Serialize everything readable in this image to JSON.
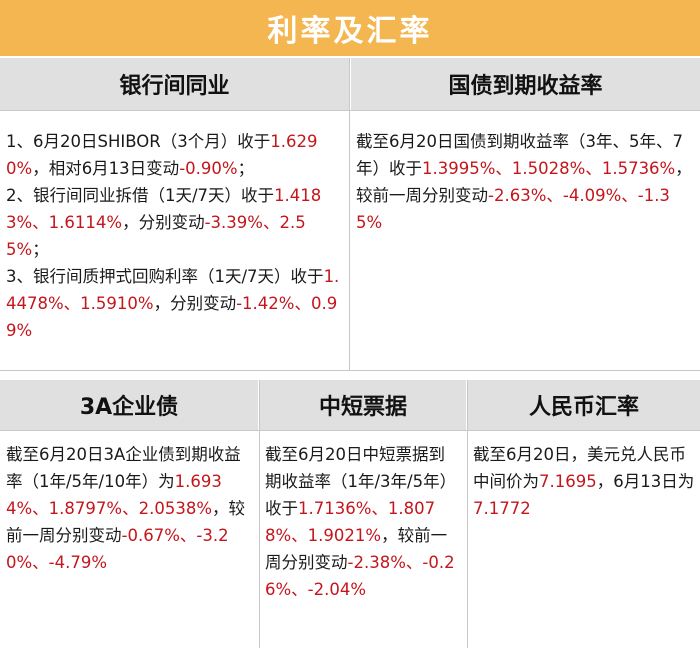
{
  "title": "利率及汇率",
  "sections": {
    "interbank": {
      "header": "银行间同业",
      "p1a": "1、6月20日SHIBOR（3个月）收于",
      "p1b": "1.6290%",
      "p1c": "，相对6月13日变动",
      "p1d": "-0.90%",
      "p1e": "；",
      "p2a": "2、银行间同业拆借（1天/7天）收于",
      "p2b": "1.4183%、1.6114%",
      "p2c": "，分别变动",
      "p2d": "-3.39%、2.55%",
      "p2e": "；",
      "p3a": "3、银行间质押式回购利率（1天/7天）收于",
      "p3b": "1.4478%、1.5910%",
      "p3c": "，分别变动",
      "p3d": "-1.42%、0.99%"
    },
    "treasury": {
      "header": "国债到期收益率",
      "a": "截至6月20日国债到期收益率（3年、5年、7年）收于",
      "b": "1.3995%、1.5028%、1.5736%",
      "c": "，较前一周分别变动",
      "d": "-2.63%、-4.09%、-1.35%"
    },
    "corp_bond": {
      "header": "3A企业债",
      "a": "截至6月20日3A企业债到期收益率（1年/5年/10年）为",
      "b": "1.6934%、1.8797%、2.0538%",
      "c": "，较前一周分别变动",
      "d": "-0.67%、-3.20%、-4.79%"
    },
    "mtn": {
      "header": "中短票据",
      "a": "截至6月20日中短票据到期收益率（1年/3年/5年）收于",
      "b": "1.7136%、1.8078%、1.9021%",
      "c": "，较前一周分别变动",
      "d": "-2.38%、-0.26%、-2.04%"
    },
    "rmb": {
      "header": "人民币汇率",
      "a": "截至6月20日，美元兑人民币中间价为",
      "b": "7.1695",
      "c": "，6月13日为",
      "d": "7.1772"
    }
  },
  "colors": {
    "title_bg": "#f3b650",
    "header_bg": "#e0e0e0",
    "highlight": "#c4161c"
  }
}
